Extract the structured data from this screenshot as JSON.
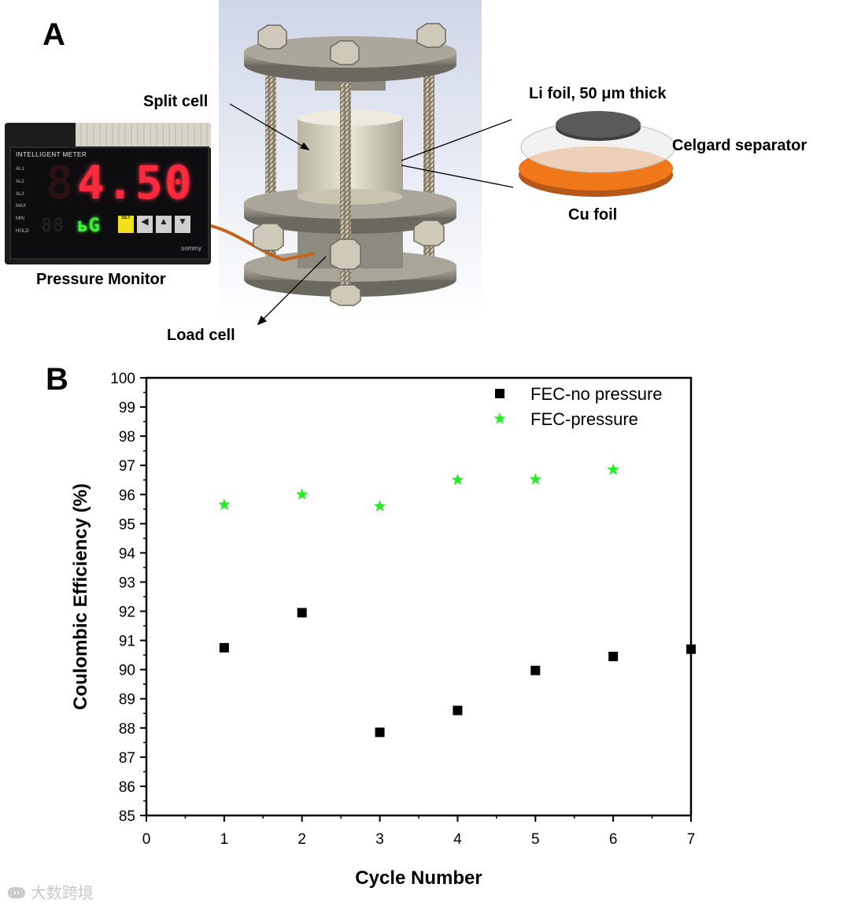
{
  "panel_a": {
    "letter": "A",
    "labels": {
      "split_cell": "Split cell",
      "li_foil": "Li foil, 50 μm thick",
      "separator": "Celgard separator",
      "cu_foil": "Cu foil",
      "pressure_monitor": "Pressure Monitor",
      "load_cell": "Load cell"
    },
    "monitor_display": {
      "header": "INTELLIGENT  METER",
      "main_reading": "4.50",
      "sub_reading": "ьG",
      "indicators": [
        "AL1",
        "AL2",
        "AL3",
        "MAX",
        "MIN",
        "HOLD"
      ],
      "buttons": [
        "SET",
        "◀",
        "▲",
        "▼"
      ],
      "brand": "sommy"
    },
    "colors": {
      "cu_foil": "#f07818",
      "li_foil": "#5a5a5a",
      "separator": "#e8e8e8",
      "plate": "#8e8a7e",
      "cylinder": "#d9d5c0"
    }
  },
  "panel_b": {
    "letter": "B"
  },
  "watermark": "大数跨境",
  "chart_data": {
    "type": "scatter",
    "xlabel": "Cycle Number",
    "ylabel": "Coulombic Efficiency (%)",
    "xlim": [
      0,
      7
    ],
    "ylim": [
      85,
      100
    ],
    "x_ticks": [
      0,
      1,
      2,
      3,
      4,
      5,
      6,
      7
    ],
    "y_ticks": [
      85,
      86,
      87,
      88,
      89,
      90,
      91,
      92,
      93,
      94,
      95,
      96,
      97,
      98,
      99,
      100
    ],
    "grid": false,
    "legend_position": "top-right",
    "series": [
      {
        "name": "FEC-no pressure",
        "marker": "square",
        "color": "#000000",
        "x": [
          1,
          2,
          3,
          4,
          5,
          6,
          7
        ],
        "y": [
          90.75,
          91.95,
          87.85,
          88.6,
          89.97,
          90.45,
          90.7
        ]
      },
      {
        "name": "FEC-pressure",
        "marker": "star",
        "color": "#22ee22",
        "x": [
          1,
          2,
          3,
          4,
          5,
          6
        ],
        "y": [
          95.65,
          96.0,
          95.6,
          96.5,
          96.52,
          96.85
        ]
      }
    ]
  }
}
